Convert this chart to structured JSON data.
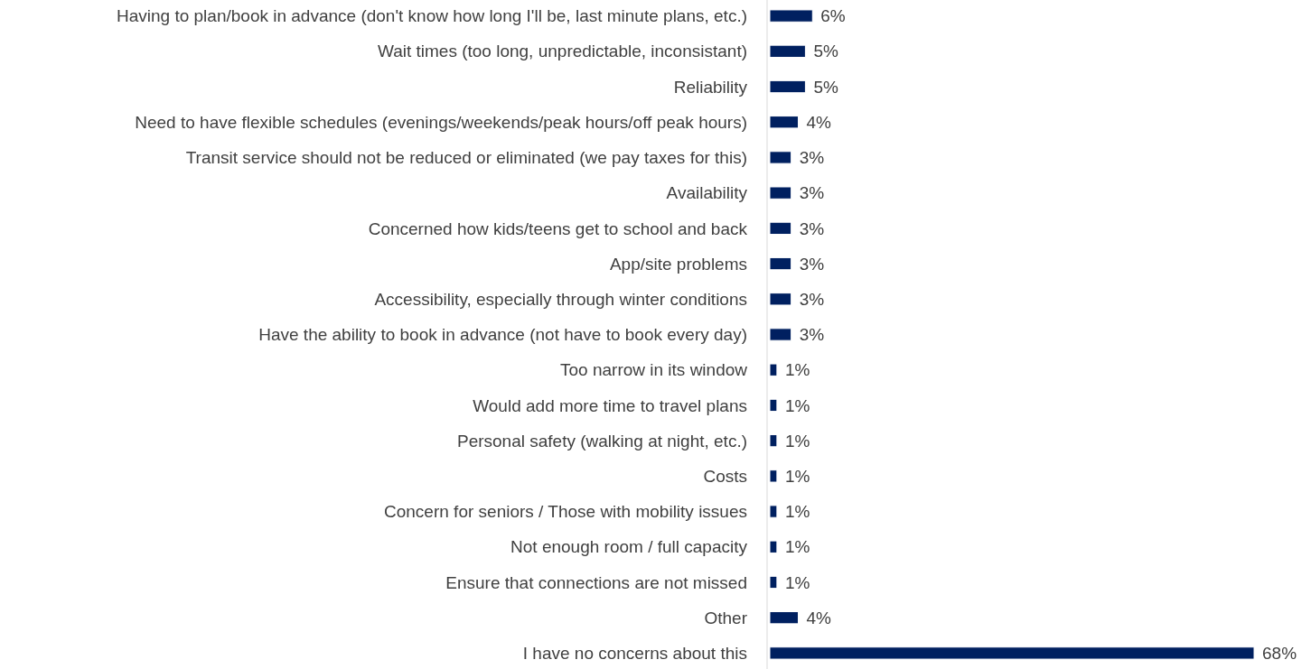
{
  "chart_data": {
    "type": "bar",
    "orientation": "horizontal",
    "categories": [
      "Having to plan/book in advance (don't know how long I'll be, last minute plans, etc.)",
      "Wait times (too long, unpredictable, inconsistant)",
      "Reliability",
      "Need to have flexible schedules (evenings/weekends/peak hours/off peak hours)",
      "Transit service should not be reduced or eliminated (we pay taxes for this)",
      "Availability",
      "Concerned how kids/teens get to school and back",
      "App/site problems",
      "Accessibility, especially through winter conditions",
      "Have the ability to book in advance (not have to book every day)",
      "Too narrow in its window",
      "Would add more time to travel plans",
      "Personal safety (walking at night, etc.)",
      "Costs",
      "Concern for seniors / Those with mobility issues",
      "Not enough room / full capacity",
      "Ensure that connections are not missed",
      "Other",
      "I have no concerns about this"
    ],
    "values": [
      6,
      5,
      5,
      4,
      3,
      3,
      3,
      3,
      3,
      3,
      1,
      1,
      1,
      1,
      1,
      1,
      1,
      4,
      68
    ],
    "value_labels": [
      "6%",
      "5%",
      "5%",
      "4%",
      "3%",
      "3%",
      "3%",
      "3%",
      "3%",
      "3%",
      "1%",
      "1%",
      "1%",
      "1%",
      "1%",
      "1%",
      "1%",
      "4%",
      "68%"
    ],
    "color": "#002060"
  }
}
